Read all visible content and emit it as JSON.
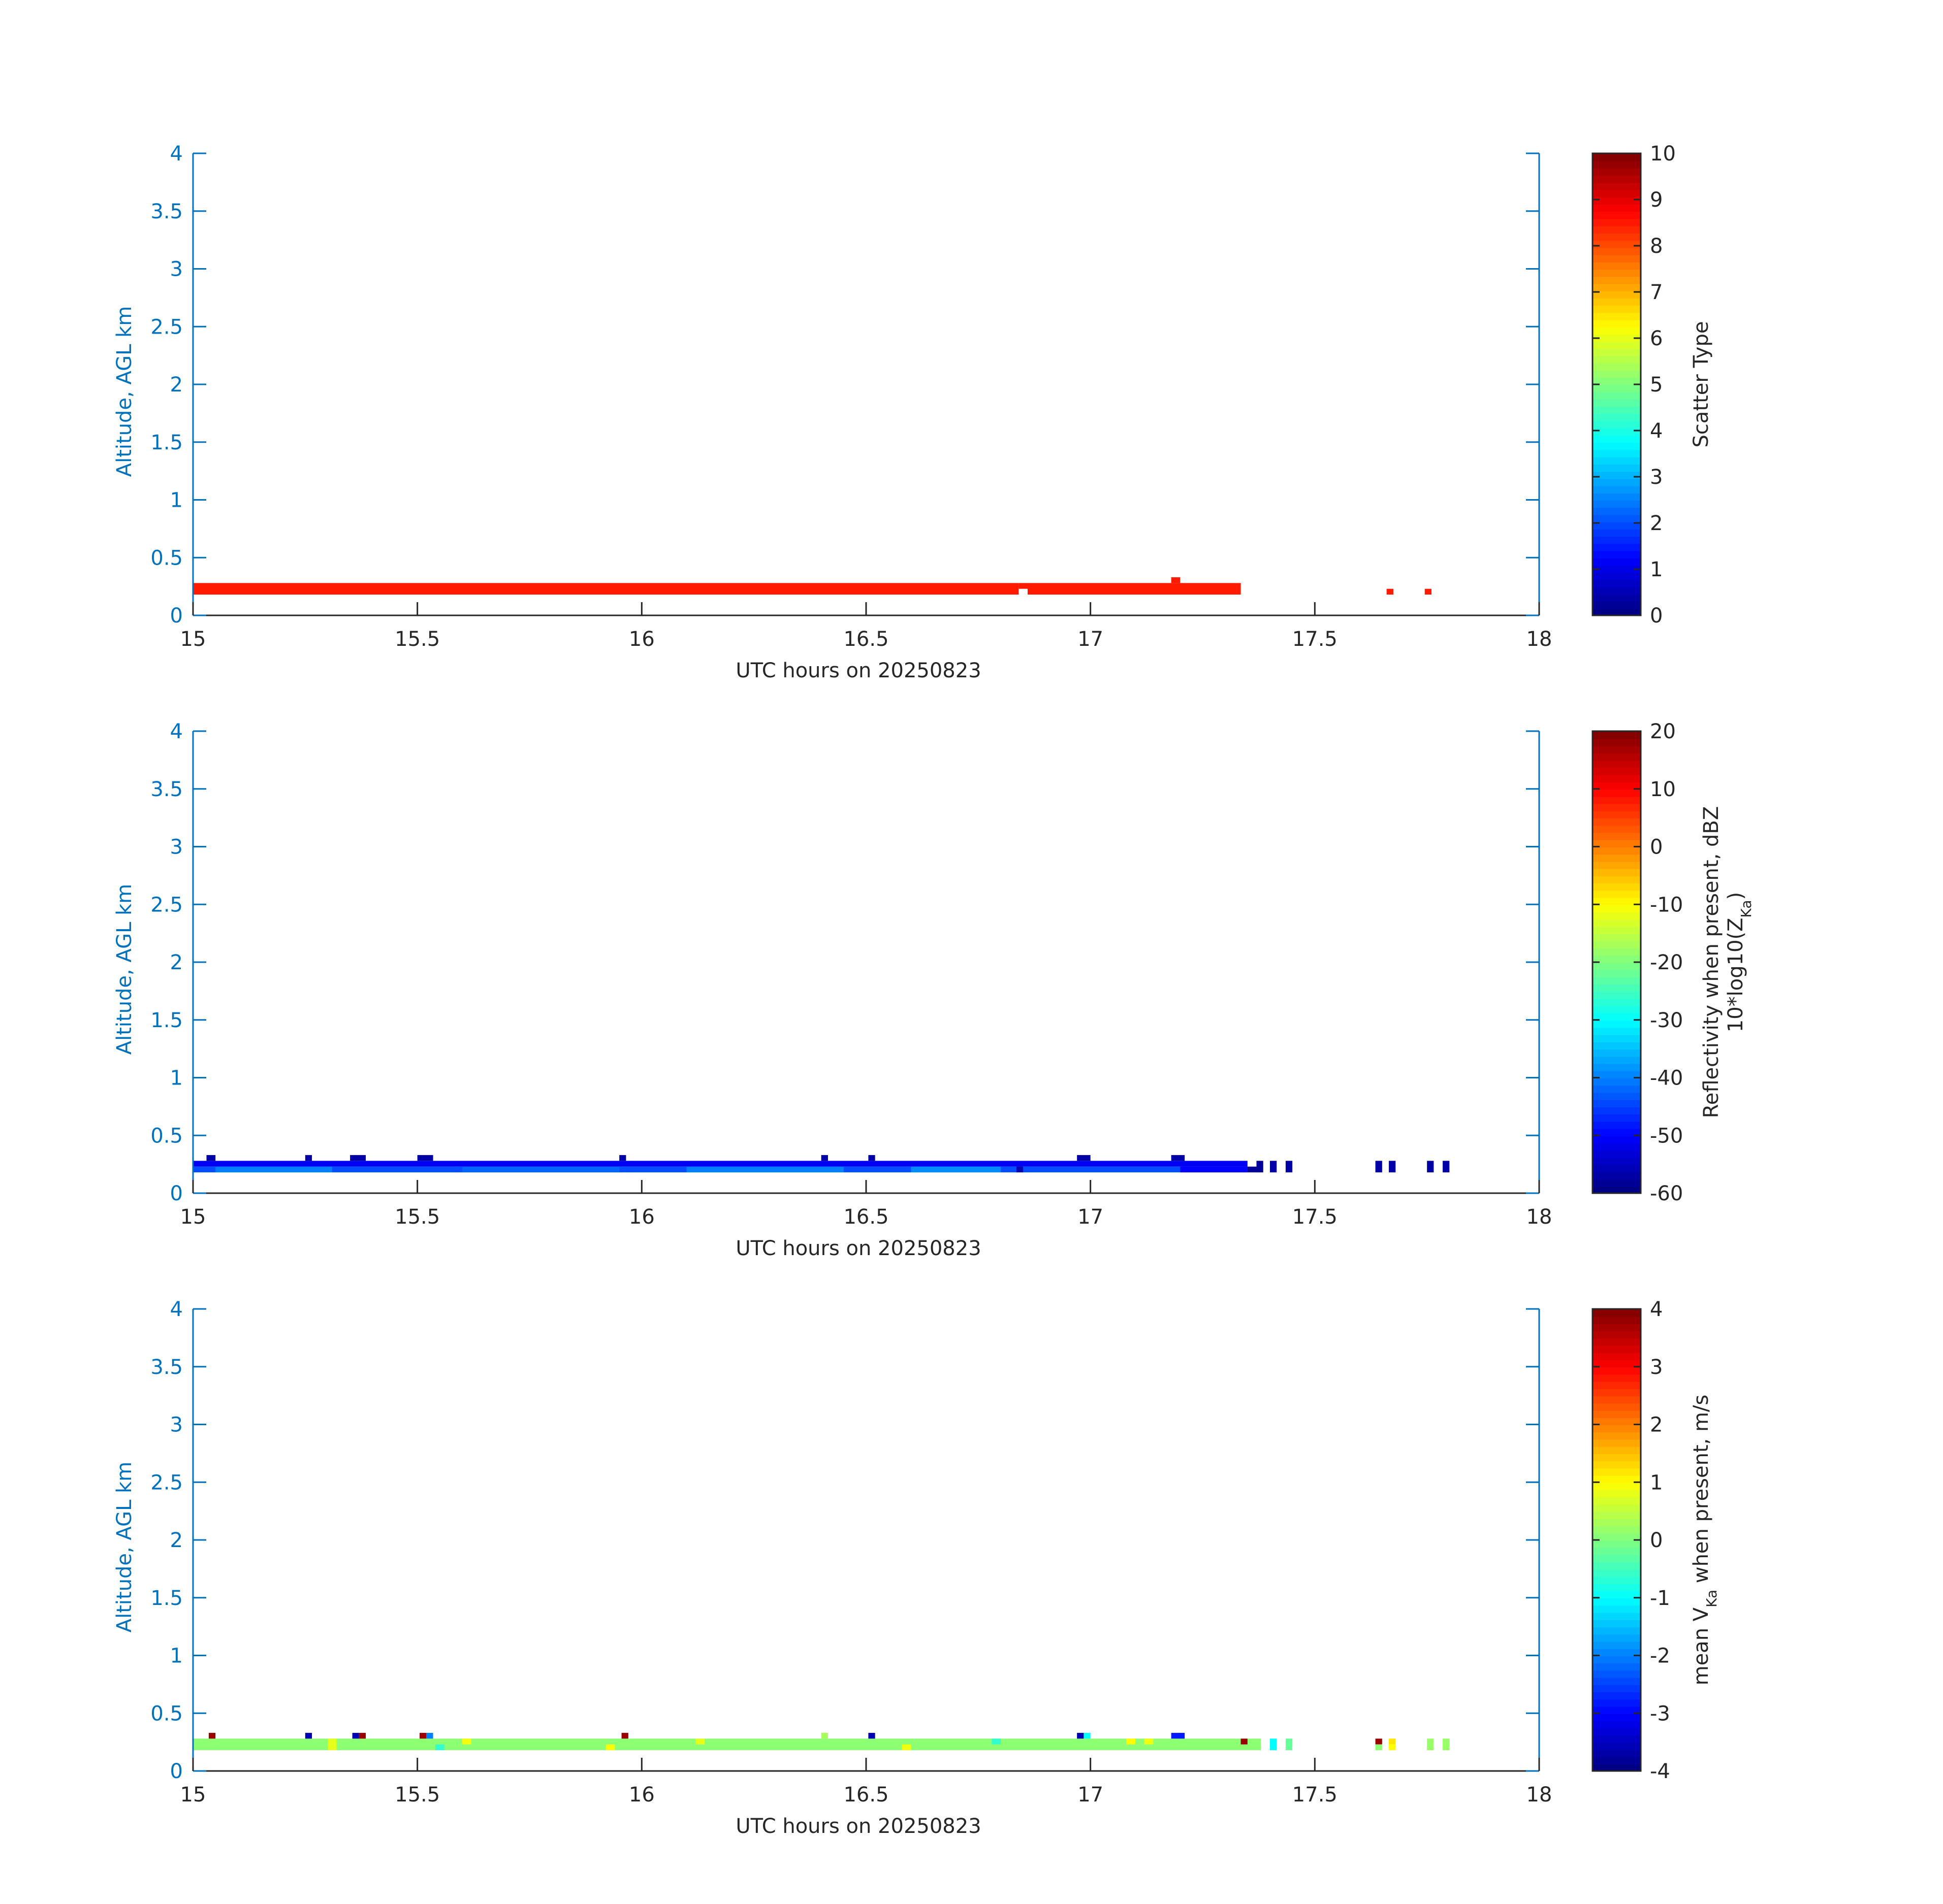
{
  "chart_data": [
    {
      "type": "heatmap",
      "xlabel": "UTC hours on 20250823",
      "ylabel": "Altitude, AGL km",
      "xlim": [
        15,
        18
      ],
      "ylim": [
        0,
        4
      ],
      "xticks": [
        "15",
        "15.5",
        "16",
        "16.5",
        "17",
        "17.5",
        "18"
      ],
      "yticks": [
        "0",
        "0.5",
        "1",
        "1.5",
        "2",
        "2.5",
        "3",
        "3.5",
        "4"
      ],
      "colorbar": {
        "label": "Scatter Type",
        "label_line2": "",
        "clim": [
          0,
          10
        ],
        "ticks": [
          "0",
          "1",
          "2",
          "3",
          "4",
          "5",
          "6",
          "7",
          "8",
          "9",
          "10"
        ]
      },
      "data": [
        {
          "x0": 15.0,
          "x1": 16.84,
          "y0": 0.18,
          "y1": 0.28,
          "v": 8.5
        },
        {
          "x0": 16.86,
          "x1": 17.335,
          "y0": 0.18,
          "y1": 0.28,
          "v": 8.5
        },
        {
          "x0": 16.84,
          "x1": 16.86,
          "y0": 0.23,
          "y1": 0.28,
          "v": 8.5
        },
        {
          "x0": 17.18,
          "x1": 17.2,
          "y0": 0.28,
          "y1": 0.33,
          "v": 8.5
        },
        {
          "x0": 17.66,
          "x1": 17.675,
          "y0": 0.18,
          "y1": 0.23,
          "v": 8.5
        },
        {
          "x0": 17.745,
          "x1": 17.76,
          "y0": 0.18,
          "y1": 0.23,
          "v": 8.5
        }
      ]
    },
    {
      "type": "heatmap",
      "xlabel": "UTC hours on 20250823",
      "ylabel": "Altitude, AGL km",
      "xlim": [
        15,
        18
      ],
      "ylim": [
        0,
        4
      ],
      "xticks": [
        "15",
        "15.5",
        "16",
        "16.5",
        "17",
        "17.5",
        "18"
      ],
      "yticks": [
        "0",
        "0.5",
        "1",
        "1.5",
        "2",
        "2.5",
        "3",
        "3.5",
        "4"
      ],
      "colorbar": {
        "label": "Reflectivity when present, dBZ",
        "label_line2": "10*log10(Z_Ka)",
        "clim": [
          -60,
          20
        ],
        "ticks": [
          "-60",
          "-50",
          "-40",
          "-30",
          "-20",
          "-10",
          "0",
          "10",
          "20"
        ]
      },
      "data": [
        {
          "x0": 15.0,
          "x1": 17.35,
          "y0": 0.23,
          "y1": 0.28,
          "v": -51
        },
        {
          "x0": 15.0,
          "x1": 17.35,
          "y0": 0.18,
          "y1": 0.23,
          "v": -44
        },
        {
          "x0": 15.05,
          "x1": 15.31,
          "y0": 0.18,
          "y1": 0.23,
          "v": -40
        },
        {
          "x0": 15.6,
          "x1": 15.95,
          "y0": 0.18,
          "y1": 0.23,
          "v": -42
        },
        {
          "x0": 16.1,
          "x1": 16.45,
          "y0": 0.18,
          "y1": 0.23,
          "v": -40
        },
        {
          "x0": 16.6,
          "x1": 16.8,
          "y0": 0.18,
          "y1": 0.23,
          "v": -39
        },
        {
          "x0": 17.2,
          "x1": 17.35,
          "y0": 0.18,
          "y1": 0.23,
          "v": -50
        },
        {
          "x0": 17.35,
          "x1": 17.38,
          "y0": 0.18,
          "y1": 0.23,
          "v": -58
        },
        {
          "x0": 16.835,
          "x1": 16.85,
          "y0": 0.18,
          "y1": 0.23,
          "v": -56
        },
        {
          "x0": 15.03,
          "x1": 15.05,
          "y0": 0.28,
          "y1": 0.33,
          "v": -57
        },
        {
          "x0": 15.25,
          "x1": 15.265,
          "y0": 0.28,
          "y1": 0.33,
          "v": -57
        },
        {
          "x0": 15.35,
          "x1": 15.385,
          "y0": 0.28,
          "y1": 0.33,
          "v": -57
        },
        {
          "x0": 15.5,
          "x1": 15.535,
          "y0": 0.28,
          "y1": 0.33,
          "v": -57
        },
        {
          "x0": 15.95,
          "x1": 15.965,
          "y0": 0.28,
          "y1": 0.33,
          "v": -57
        },
        {
          "x0": 16.4,
          "x1": 16.415,
          "y0": 0.28,
          "y1": 0.33,
          "v": -57
        },
        {
          "x0": 16.505,
          "x1": 16.52,
          "y0": 0.28,
          "y1": 0.33,
          "v": -57
        },
        {
          "x0": 16.97,
          "x1": 17.0,
          "y0": 0.28,
          "y1": 0.33,
          "v": -57
        },
        {
          "x0": 17.18,
          "x1": 17.21,
          "y0": 0.28,
          "y1": 0.33,
          "v": -57
        },
        {
          "x0": 17.37,
          "x1": 17.385,
          "y0": 0.18,
          "y1": 0.28,
          "v": -58
        },
        {
          "x0": 17.4,
          "x1": 17.415,
          "y0": 0.18,
          "y1": 0.28,
          "v": -57
        },
        {
          "x0": 17.435,
          "x1": 17.45,
          "y0": 0.18,
          "y1": 0.28,
          "v": -57
        },
        {
          "x0": 17.635,
          "x1": 17.65,
          "y0": 0.18,
          "y1": 0.28,
          "v": -57
        },
        {
          "x0": 17.665,
          "x1": 17.68,
          "y0": 0.18,
          "y1": 0.28,
          "v": -57
        },
        {
          "x0": 17.75,
          "x1": 17.765,
          "y0": 0.18,
          "y1": 0.28,
          "v": -57
        },
        {
          "x0": 17.785,
          "x1": 17.8,
          "y0": 0.18,
          "y1": 0.28,
          "v": -57
        }
      ]
    },
    {
      "type": "heatmap",
      "xlabel": "UTC hours on 20250823",
      "ylabel": "Altitude, AGL km",
      "xlim": [
        15,
        18
      ],
      "ylim": [
        0,
        4
      ],
      "xticks": [
        "15",
        "15.5",
        "16",
        "16.5",
        "17",
        "17.5",
        "18"
      ],
      "yticks": [
        "0",
        "0.5",
        "1",
        "1.5",
        "2",
        "2.5",
        "3",
        "3.5",
        "4"
      ],
      "colorbar": {
        "label": "mean V_Ka when present, m/s",
        "label_line2": "",
        "clim": [
          -4,
          4
        ],
        "ticks": [
          "-4",
          "-3",
          "-2",
          "-1",
          "0",
          "1",
          "2",
          "3",
          "4"
        ]
      },
      "data": [
        {
          "x0": 15.0,
          "x1": 17.38,
          "y0": 0.18,
          "y1": 0.28,
          "v": 0.1
        },
        {
          "x0": 15.3,
          "x1": 15.32,
          "y0": 0.18,
          "y1": 0.28,
          "v": 0.8
        },
        {
          "x0": 15.6,
          "x1": 15.62,
          "y0": 0.23,
          "y1": 0.28,
          "v": 0.9
        },
        {
          "x0": 15.92,
          "x1": 15.94,
          "y0": 0.18,
          "y1": 0.23,
          "v": 1.0
        },
        {
          "x0": 16.12,
          "x1": 16.14,
          "y0": 0.23,
          "y1": 0.28,
          "v": 0.8
        },
        {
          "x0": 16.58,
          "x1": 16.6,
          "y0": 0.18,
          "y1": 0.23,
          "v": 0.9
        },
        {
          "x0": 17.08,
          "x1": 17.1,
          "y0": 0.23,
          "y1": 0.28,
          "v": 1.0
        },
        {
          "x0": 17.12,
          "x1": 17.14,
          "y0": 0.23,
          "y1": 0.28,
          "v": 0.9
        },
        {
          "x0": 15.54,
          "x1": 15.56,
          "y0": 0.18,
          "y1": 0.23,
          "v": -0.6
        },
        {
          "x0": 16.78,
          "x1": 16.8,
          "y0": 0.23,
          "y1": 0.28,
          "v": -0.6
        },
        {
          "x0": 15.035,
          "x1": 15.05,
          "y0": 0.28,
          "y1": 0.33,
          "v": 3.8
        },
        {
          "x0": 15.25,
          "x1": 15.265,
          "y0": 0.28,
          "y1": 0.33,
          "v": -3.6
        },
        {
          "x0": 15.355,
          "x1": 15.37,
          "y0": 0.28,
          "y1": 0.33,
          "v": -3.6
        },
        {
          "x0": 15.37,
          "x1": 15.385,
          "y0": 0.28,
          "y1": 0.33,
          "v": 3.8
        },
        {
          "x0": 15.505,
          "x1": 15.52,
          "y0": 0.28,
          "y1": 0.33,
          "v": 3.8
        },
        {
          "x0": 15.52,
          "x1": 15.535,
          "y0": 0.28,
          "y1": 0.33,
          "v": -2.0
        },
        {
          "x0": 15.955,
          "x1": 15.97,
          "y0": 0.28,
          "y1": 0.33,
          "v": 3.8
        },
        {
          "x0": 16.4,
          "x1": 16.415,
          "y0": 0.28,
          "y1": 0.33,
          "v": 0.3
        },
        {
          "x0": 16.505,
          "x1": 16.52,
          "y0": 0.28,
          "y1": 0.33,
          "v": -3.6
        },
        {
          "x0": 16.97,
          "x1": 16.985,
          "y0": 0.28,
          "y1": 0.33,
          "v": -3.6
        },
        {
          "x0": 16.985,
          "x1": 17.0,
          "y0": 0.28,
          "y1": 0.33,
          "v": -1.0
        },
        {
          "x0": 17.18,
          "x1": 17.21,
          "y0": 0.28,
          "y1": 0.33,
          "v": -2.8
        },
        {
          "x0": 17.335,
          "x1": 17.35,
          "y0": 0.23,
          "y1": 0.28,
          "v": 3.8
        },
        {
          "x0": 17.4,
          "x1": 17.415,
          "y0": 0.18,
          "y1": 0.28,
          "v": -1.0
        },
        {
          "x0": 17.435,
          "x1": 17.45,
          "y0": 0.18,
          "y1": 0.28,
          "v": -0.2
        },
        {
          "x0": 17.635,
          "x1": 17.65,
          "y0": 0.23,
          "y1": 0.28,
          "v": 3.8
        },
        {
          "x0": 17.635,
          "x1": 17.65,
          "y0": 0.18,
          "y1": 0.23,
          "v": 0.1
        },
        {
          "x0": 17.665,
          "x1": 17.68,
          "y0": 0.23,
          "y1": 0.28,
          "v": 1.2
        },
        {
          "x0": 17.665,
          "x1": 17.68,
          "y0": 0.18,
          "y1": 0.23,
          "v": 1.0
        },
        {
          "x0": 17.75,
          "x1": 17.765,
          "y0": 0.18,
          "y1": 0.28,
          "v": 0.2
        },
        {
          "x0": 17.785,
          "x1": 17.8,
          "y0": 0.18,
          "y1": 0.28,
          "v": 0.2
        }
      ]
    }
  ]
}
